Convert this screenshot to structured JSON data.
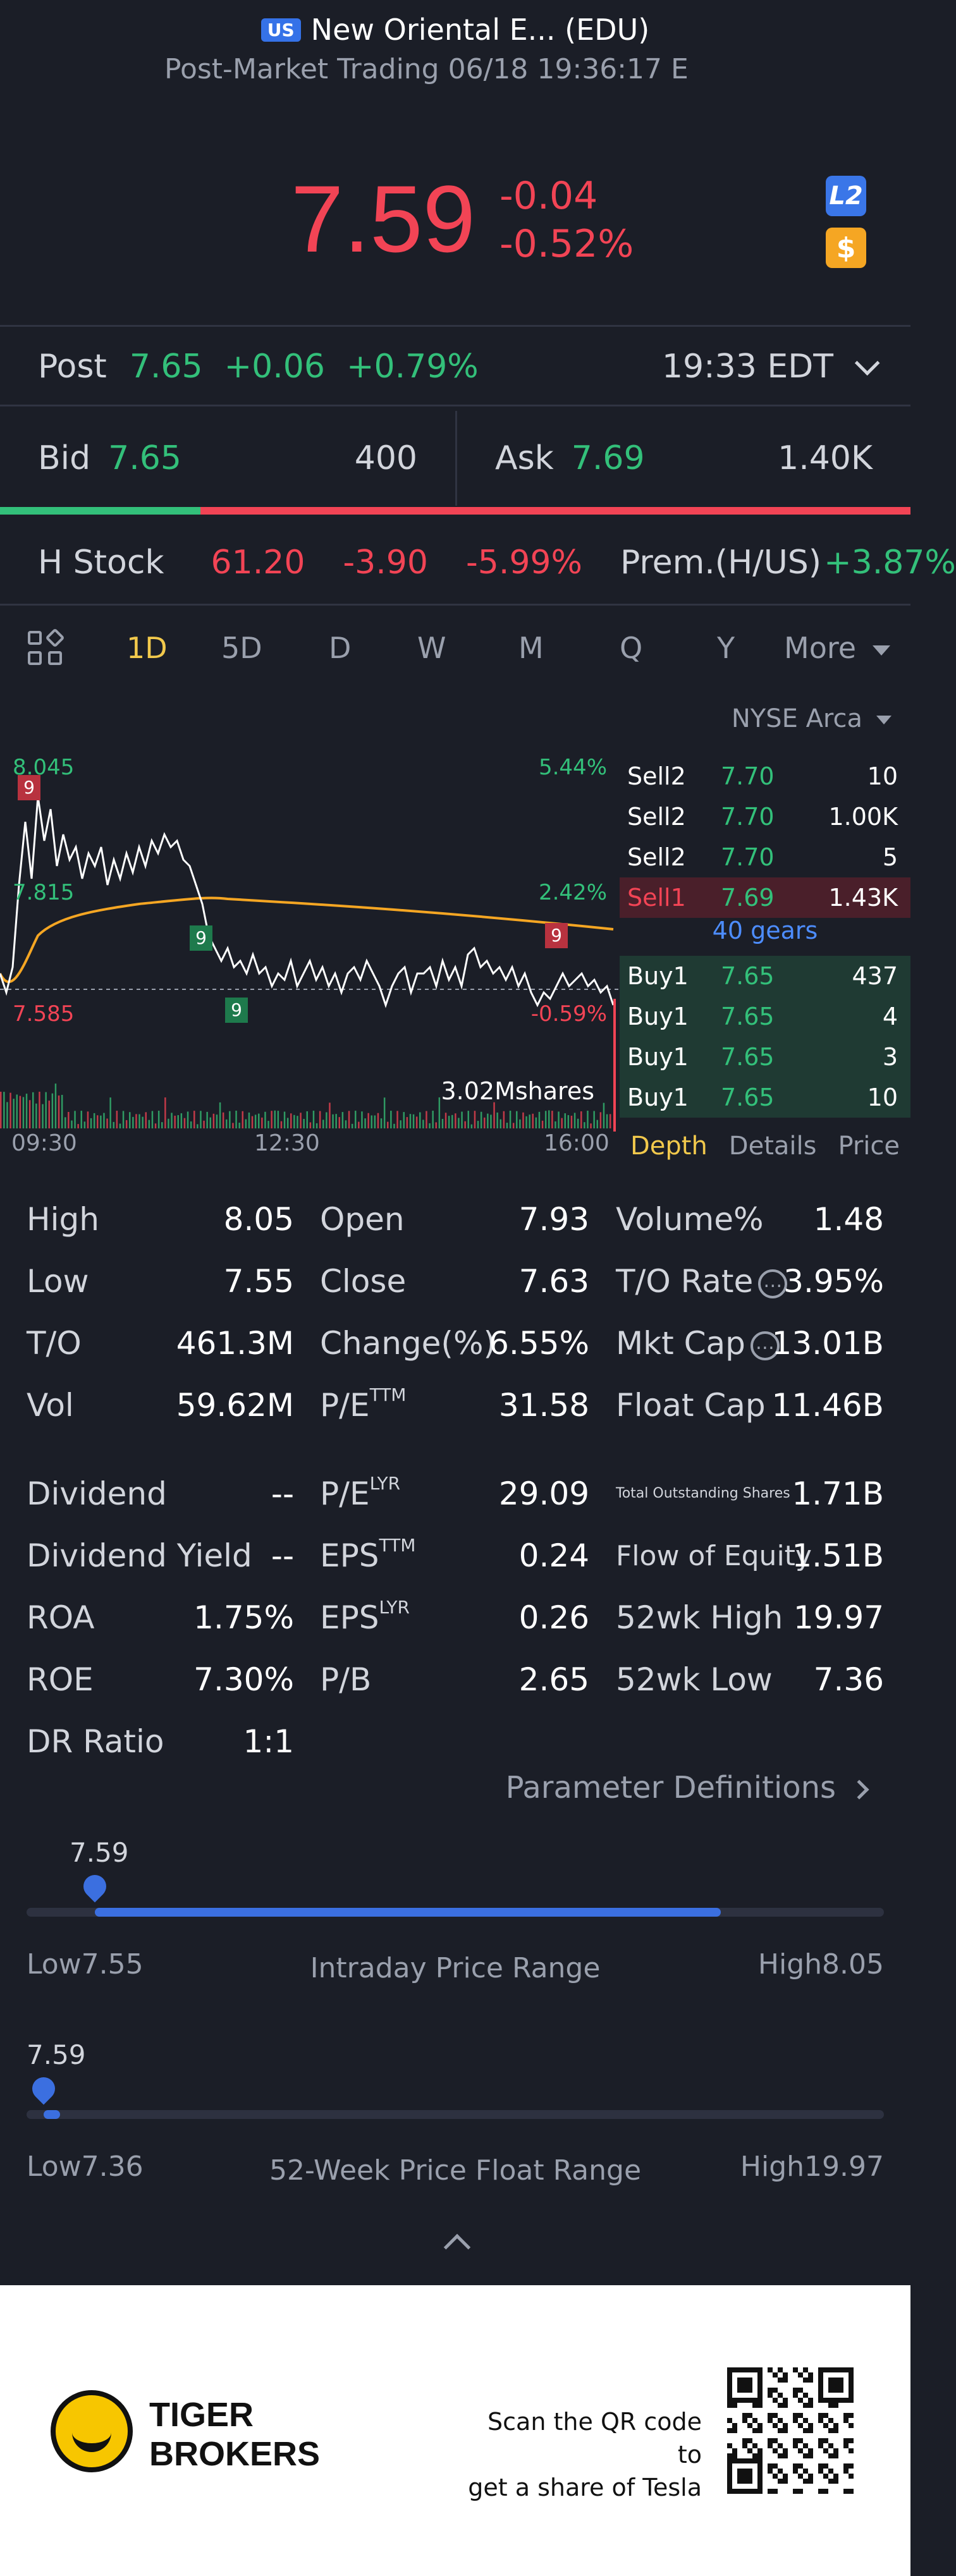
{
  "header": {
    "market_badge": "US",
    "title": "New Oriental E... (EDU)",
    "subtitle": "Post-Market Trading 06/18 19:36:17 E",
    "price": "7.59",
    "change": "-0.04",
    "change_pct": "-0.52%",
    "l2_label": "L2",
    "dollar_label": "$"
  },
  "post": {
    "label": "Post",
    "price": "7.65",
    "change": "+0.06",
    "change_pct": "+0.79%",
    "time": "19:33 EDT"
  },
  "bid": {
    "label": "Bid",
    "price": "7.65",
    "qty": "400"
  },
  "ask": {
    "label": "Ask",
    "price": "7.69",
    "qty": "1.40K"
  },
  "bid_ask_ratio": 0.22,
  "hstock": {
    "label": "H Stock",
    "price": "61.20",
    "change": "-3.90",
    "change_pct": "-5.99%",
    "prem_label": "Prem.(H/US)",
    "prem_value": "+3.87%"
  },
  "tabs": [
    "1D",
    "5D",
    "D",
    "W",
    "M",
    "Q",
    "Y",
    "More"
  ],
  "active_tab": "1D",
  "chart": {
    "high_label": "8.045",
    "mid_label": "7.815",
    "low_label": "7.585",
    "pct_high": "5.44%",
    "pct_mid": "2.42%",
    "pct_low": "-0.59%",
    "volume_label": "3.02Mshares",
    "times": [
      "09:30",
      "12:30",
      "16:00"
    ],
    "marker_label": "9",
    "colors": {
      "price_line": "#ffffff",
      "avg_line": "#f5a623"
    }
  },
  "chart_data": {
    "type": "line",
    "x": [
      "09:30",
      "12:30",
      "16:00"
    ],
    "series": [],
    "ylim": [
      7.585,
      8.045
    ]
  },
  "orderbook": {
    "exchange": "NYSE Arca",
    "sells": [
      {
        "label": "Sell2",
        "price": "7.70",
        "qty": "10"
      },
      {
        "label": "Sell2",
        "price": "7.70",
        "qty": "1.00K"
      },
      {
        "label": "Sell2",
        "price": "7.70",
        "qty": "5"
      },
      {
        "label": "Sell1",
        "price": "7.69",
        "qty": "1.43K"
      }
    ],
    "gears": "40 gears",
    "buys": [
      {
        "label": "Buy1",
        "price": "7.65",
        "qty": "437"
      },
      {
        "label": "Buy1",
        "price": "7.65",
        "qty": "4"
      },
      {
        "label": "Buy1",
        "price": "7.65",
        "qty": "3"
      },
      {
        "label": "Buy1",
        "price": "7.65",
        "qty": "10"
      }
    ],
    "tabs": [
      "Depth",
      "Details",
      "Price"
    ]
  },
  "stats": {
    "high": {
      "label": "High",
      "value": "8.05"
    },
    "low": {
      "label": "Low",
      "value": "7.55"
    },
    "to": {
      "label": "T/O",
      "value": "461.3M"
    },
    "vol": {
      "label": "Vol",
      "value": "59.62M"
    },
    "open": {
      "label": "Open",
      "value": "7.93"
    },
    "close": {
      "label": "Close",
      "value": "7.63"
    },
    "change": {
      "label": "Change(%)",
      "value": "6.55%"
    },
    "pe": {
      "label": "P/E",
      "sup": "TTM",
      "value": "31.58"
    },
    "volume_pct": {
      "label": "Volume%",
      "value": "1.48"
    },
    "to_rate": {
      "label": "T/O Rate",
      "value": "3.95%"
    },
    "mkt_cap": {
      "label": "Mkt Cap",
      "value": "13.01B"
    },
    "float_cap": {
      "label": "Float Cap",
      "value": "11.46B"
    },
    "dividend": {
      "label": "Dividend",
      "value": "--"
    },
    "dividend_yield": {
      "label": "Dividend Yield",
      "value": "--"
    },
    "roa": {
      "label": "ROA",
      "value": "1.75%"
    },
    "roe": {
      "label": "ROE",
      "value": "7.30%"
    },
    "dr_ratio": {
      "label": "DR Ratio",
      "value": "1:1"
    },
    "pe_lyr": {
      "label": "P/E",
      "sup": "LYR",
      "value": "29.09"
    },
    "eps_ttm": {
      "label": "EPS",
      "sup": "TTM",
      "value": "0.24"
    },
    "eps_lyr": {
      "label": "EPS",
      "sup": "LYR",
      "value": "0.26"
    },
    "pb": {
      "label": "P/B",
      "value": "2.65"
    },
    "total_shares": {
      "label": "Total Outstanding Shares",
      "value": "1.71B"
    },
    "flow_equity": {
      "label": "Flow of Equity",
      "value": "1.51B"
    },
    "wk52_high": {
      "label": "52wk High",
      "value": "19.97"
    },
    "wk52_low": {
      "label": "52wk Low",
      "value": "7.36"
    }
  },
  "param_def": "Parameter Definitions",
  "intraday_range": {
    "current": "7.59",
    "low_label": "Low",
    "low": "7.55",
    "high_label": "High",
    "high": "8.05",
    "title": "Intraday Price Range",
    "position": 0.08,
    "fill_end": 0.81
  },
  "week52_range": {
    "current": "7.59",
    "low_label": "Low",
    "low": "7.36",
    "high_label": "High",
    "high": "19.97",
    "title": "52-Week Price Float Range",
    "position": 0.02,
    "fill_end": 0.02
  },
  "footer": {
    "brand_line1": "TIGER",
    "brand_line2": "BROKERS",
    "scan_line1": "Scan the QR code to",
    "scan_line2": "get a share of Tesla"
  }
}
